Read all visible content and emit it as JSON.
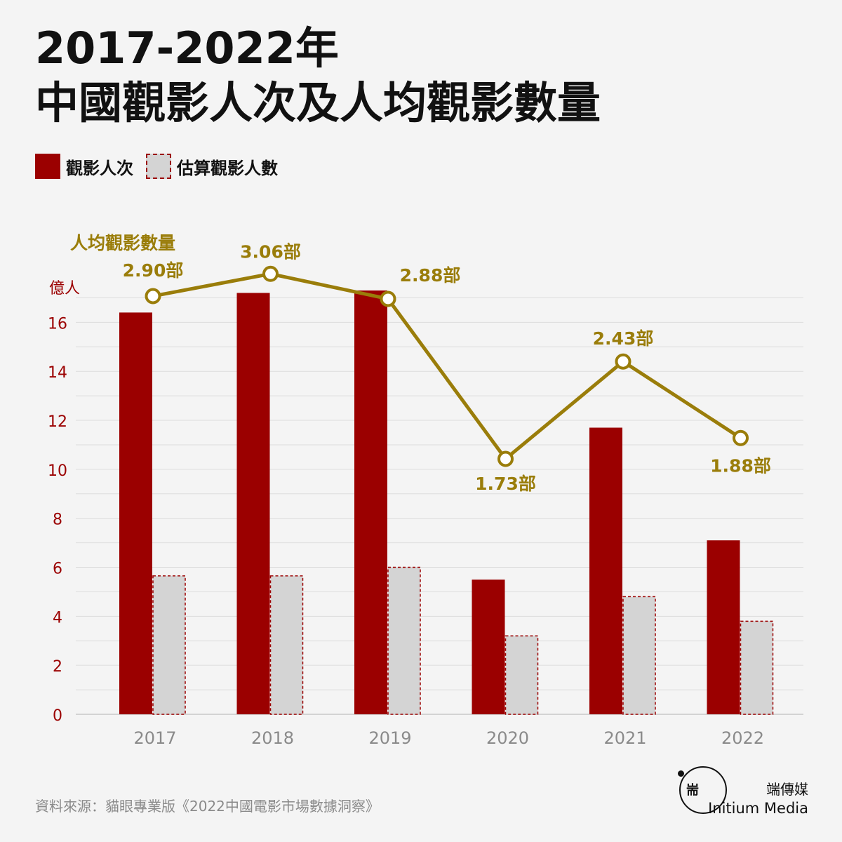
{
  "header": {
    "title_line1": "2017-2022年",
    "title_line2": "中國觀影人次及人均觀影數量"
  },
  "legend": {
    "bars_label": "觀影人次",
    "estimate_label": "估算觀影人數"
  },
  "line_label": "人均觀影數量",
  "y_unit": "億人",
  "source": "資料來源：貓眼專業版《2022中國電影市場數據洞察》",
  "brand": {
    "cn": "端傳媒",
    "en": "Initium Media",
    "mark": "耑"
  },
  "colors": {
    "bar": "#9b0000",
    "estimate": "#d4d4d4",
    "line": "#9a7d0a",
    "axis_text": "#9b0000"
  },
  "chart_data": {
    "type": "bar",
    "categories": [
      "2017",
      "2018",
      "2019",
      "2020",
      "2021",
      "2022"
    ],
    "series": [
      {
        "name": "觀影人次",
        "values": [
          16.4,
          17.2,
          17.3,
          5.5,
          11.7,
          7.1
        ]
      },
      {
        "name": "估算觀影人數",
        "values": [
          5.65,
          5.65,
          6.0,
          3.2,
          4.8,
          3.8
        ]
      }
    ],
    "line_series": {
      "name": "人均觀影數量",
      "values": [
        2.9,
        3.06,
        2.88,
        1.73,
        2.43,
        1.88
      ],
      "labels": [
        "2.90部",
        "3.06部",
        "2.88部",
        "1.73部",
        "2.43部",
        "1.88部"
      ]
    },
    "yticks": [
      0,
      2,
      4,
      6,
      8,
      10,
      12,
      14,
      16
    ],
    "ylim": [
      0,
      17.5
    ],
    "grid": true,
    "legend_position": "top-left"
  }
}
